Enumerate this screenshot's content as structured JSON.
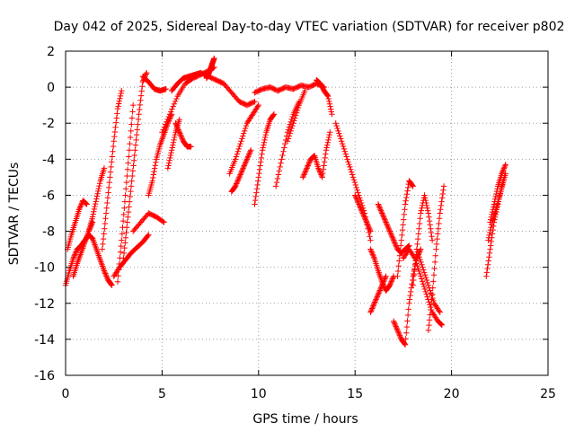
{
  "chart_data": {
    "type": "scatter",
    "title": "Day 042 of 2025, Sidereal Day-to-day VTEC variation (SDTVAR) for receiver p802",
    "xlabel": "GPS time / hours",
    "ylabel": "SDTVAR / TECUs",
    "xlim": [
      0,
      25
    ],
    "ylim": [
      -16,
      2
    ],
    "xticks": [
      0,
      5,
      10,
      15,
      20,
      25
    ],
    "yticks": [
      -16,
      -14,
      -12,
      -10,
      -8,
      -6,
      -4,
      -2,
      0,
      2
    ],
    "grid": true,
    "marker": "plus",
    "color": "#ff0000",
    "series": [
      {
        "name": "s1",
        "x": [
          0.0,
          0.2,
          0.4,
          0.6,
          0.8,
          1.0,
          1.2,
          1.4,
          1.6,
          1.8,
          2.0,
          2.2,
          2.4
        ],
        "y": [
          -11.0,
          -10.2,
          -9.5,
          -9.0,
          -8.8,
          -8.5,
          -8.2,
          -8.4,
          -9.0,
          -9.6,
          -10.2,
          -10.7,
          -11.0
        ]
      },
      {
        "name": "s2",
        "x": [
          0.1,
          0.3,
          0.5,
          0.7,
          0.9,
          1.1
        ],
        "y": [
          -9.0,
          -8.2,
          -7.5,
          -6.8,
          -6.3,
          -6.5
        ]
      },
      {
        "name": "s3",
        "x": [
          0.4,
          0.6,
          0.8,
          1.0,
          1.2,
          1.4
        ],
        "y": [
          -10.5,
          -9.8,
          -9.2,
          -8.6,
          -8.0,
          -7.5
        ]
      },
      {
        "name": "s4",
        "x": [
          1.2,
          1.4,
          1.6,
          1.8,
          2.0
        ],
        "y": [
          -8.0,
          -7.2,
          -6.2,
          -5.2,
          -4.5
        ]
      },
      {
        "name": "s5",
        "x": [
          1.9,
          2.1,
          2.3,
          2.5,
          2.7,
          2.9
        ],
        "y": [
          -9.0,
          -7.0,
          -5.0,
          -3.0,
          -1.2,
          -0.2
        ]
      },
      {
        "name": "s6",
        "x": [
          2.5,
          2.8,
          3.1,
          3.4,
          3.7,
          4.0,
          4.3
        ],
        "y": [
          -10.5,
          -10.0,
          -9.6,
          -9.2,
          -8.9,
          -8.6,
          -8.2
        ]
      },
      {
        "name": "s7",
        "x": [
          3.0,
          3.2,
          3.4,
          3.6,
          3.8,
          4.0,
          4.2
        ],
        "y": [
          -9.5,
          -7.5,
          -5.5,
          -3.5,
          -1.5,
          0.3,
          0.8
        ]
      },
      {
        "name": "s8",
        "x": [
          2.7,
          2.9,
          3.1,
          3.3,
          3.5
        ],
        "y": [
          -10.8,
          -8.5,
          -6.0,
          -3.5,
          -1.0
        ]
      },
      {
        "name": "s9",
        "x": [
          3.5,
          3.9,
          4.3,
          4.7,
          5.1
        ],
        "y": [
          -8.0,
          -7.5,
          -7.0,
          -7.2,
          -7.5
        ]
      },
      {
        "name": "s10",
        "x": [
          4.0,
          4.3,
          4.6,
          4.9,
          5.2
        ],
        "y": [
          0.6,
          0.3,
          -0.1,
          -0.2,
          -0.1
        ]
      },
      {
        "name": "s11",
        "x": [
          4.3,
          4.5,
          4.7,
          4.9,
          5.1,
          5.3,
          5.5
        ],
        "y": [
          -6.0,
          -5.2,
          -4.0,
          -3.2,
          -2.6,
          -2.0,
          -1.5
        ]
      },
      {
        "name": "s12",
        "x": [
          5.0,
          5.4,
          5.8,
          6.2,
          6.6,
          7.0,
          7.4,
          7.7
        ],
        "y": [
          -2.5,
          -1.5,
          -0.5,
          0.2,
          0.5,
          0.7,
          0.9,
          1.1
        ]
      },
      {
        "name": "s13",
        "x": [
          7.7,
          7.6,
          7.5,
          7.4,
          7.3
        ],
        "y": [
          1.6,
          1.3,
          1.0,
          0.7,
          0.5
        ]
      },
      {
        "name": "s14",
        "x": [
          5.5,
          5.8,
          6.1,
          6.4,
          6.7,
          7.0,
          7.4,
          7.8,
          8.2,
          8.6,
          9.0,
          9.4,
          9.8
        ],
        "y": [
          -0.2,
          0.2,
          0.5,
          0.6,
          0.7,
          0.8,
          0.6,
          0.4,
          0.2,
          -0.3,
          -0.8,
          -1.0,
          -0.8
        ]
      },
      {
        "name": "s15",
        "x": [
          5.7,
          5.9,
          6.1,
          6.3,
          6.5
        ],
        "y": [
          -2.0,
          -2.5,
          -3.0,
          -3.3,
          -3.3
        ]
      },
      {
        "name": "s16",
        "x": [
          5.3,
          5.5,
          5.7,
          5.9
        ],
        "y": [
          -4.5,
          -3.5,
          -2.5,
          -1.8
        ]
      },
      {
        "name": "s17",
        "x": [
          8.5,
          8.8,
          9.1,
          9.4,
          9.7,
          10.0
        ],
        "y": [
          -4.8,
          -4.0,
          -3.0,
          -2.0,
          -1.5,
          -1.0
        ]
      },
      {
        "name": "s18",
        "x": [
          8.6,
          8.8,
          9.0,
          9.2,
          9.4,
          9.6
        ],
        "y": [
          -5.8,
          -5.5,
          -5.0,
          -4.5,
          -4.0,
          -3.5
        ]
      },
      {
        "name": "s19",
        "x": [
          9.8,
          10.2,
          10.6,
          11.0,
          11.4,
          11.8,
          12.2,
          12.6,
          13.0,
          13.4
        ],
        "y": [
          -0.3,
          -0.1,
          0.0,
          -0.2,
          0.0,
          -0.1,
          0.1,
          0.0,
          0.2,
          0.0
        ]
      },
      {
        "name": "s20",
        "x": [
          9.8,
          10.0,
          10.2,
          10.4,
          10.6,
          10.8
        ],
        "y": [
          -6.5,
          -5.0,
          -3.5,
          -2.5,
          -1.8,
          -1.5
        ]
      },
      {
        "name": "s21",
        "x": [
          10.9,
          11.2,
          11.5,
          11.8,
          12.1
        ],
        "y": [
          -5.5,
          -4.0,
          -2.5,
          -1.5,
          -0.8
        ]
      },
      {
        "name": "s22",
        "x": [
          12.3,
          12.5,
          12.7,
          12.9,
          13.1,
          13.3,
          13.5,
          13.7
        ],
        "y": [
          -5.0,
          -4.5,
          -4.0,
          -3.8,
          -4.5,
          -5.0,
          -3.5,
          -2.5
        ]
      },
      {
        "name": "s23",
        "x": [
          13.0,
          13.2,
          13.4,
          13.6,
          13.8
        ],
        "y": [
          0.4,
          0.2,
          -0.2,
          -0.5,
          -1.5
        ]
      },
      {
        "name": "s24",
        "x": [
          11.5,
          11.8,
          12.1,
          12.4
        ],
        "y": [
          -3.0,
          -2.0,
          -1.0,
          -0.2
        ]
      },
      {
        "name": "s25",
        "x": [
          14.0,
          14.3,
          14.6,
          14.9,
          15.2,
          15.5,
          15.8
        ],
        "y": [
          -2.0,
          -3.0,
          -4.0,
          -5.0,
          -6.0,
          -7.0,
          -8.5
        ]
      },
      {
        "name": "s26",
        "x": [
          15.0,
          15.2,
          15.4,
          15.6,
          15.8
        ],
        "y": [
          -6.0,
          -6.5,
          -7.0,
          -7.5,
          -8.0
        ]
      },
      {
        "name": "s27",
        "x": [
          15.8,
          16.0,
          16.2,
          16.4,
          16.6,
          16.8,
          17.0
        ],
        "y": [
          -9.0,
          -9.5,
          -10.2,
          -10.8,
          -11.3,
          -11.0,
          -10.5
        ]
      },
      {
        "name": "s28",
        "x": [
          16.2,
          16.4,
          16.6,
          16.8,
          17.0,
          17.2,
          17.4,
          17.6,
          17.8
        ],
        "y": [
          -6.5,
          -7.0,
          -7.5,
          -8.0,
          -8.5,
          -9.0,
          -9.2,
          -9.0,
          -8.8
        ]
      },
      {
        "name": "s29",
        "x": [
          15.8,
          16.0,
          16.2,
          16.4,
          16.6
        ],
        "y": [
          -12.5,
          -12.0,
          -11.5,
          -11.0,
          -10.5
        ]
      },
      {
        "name": "s30",
        "x": [
          17.2,
          17.4,
          17.6,
          17.8,
          18.0
        ],
        "y": [
          -10.5,
          -8.5,
          -6.5,
          -5.2,
          -5.5
        ]
      },
      {
        "name": "s31",
        "x": [
          17.0,
          17.2,
          17.4,
          17.6,
          17.8,
          18.0,
          18.2,
          18.4
        ],
        "y": [
          -13.0,
          -13.5,
          -14.0,
          -14.3,
          -12.0,
          -10.5,
          -9.5,
          -9.0
        ]
      },
      {
        "name": "s32",
        "x": [
          17.5,
          17.8,
          18.1,
          18.4,
          18.7,
          19.0,
          19.3,
          19.5
        ],
        "y": [
          -9.5,
          -9.0,
          -9.5,
          -10.5,
          -11.5,
          -12.5,
          -13.0,
          -13.2
        ]
      },
      {
        "name": "s33",
        "x": [
          18.0,
          18.2,
          18.4,
          18.6,
          18.8,
          19.0
        ],
        "y": [
          -11.0,
          -9.0,
          -7.0,
          -6.0,
          -7.0,
          -8.5
        ]
      },
      {
        "name": "s34",
        "x": [
          18.8,
          19.0,
          19.2,
          19.4,
          19.6
        ],
        "y": [
          -13.5,
          -11.5,
          -9.0,
          -7.0,
          -5.5
        ]
      },
      {
        "name": "s35",
        "x": [
          18.2,
          18.5,
          18.8,
          19.1,
          19.4
        ],
        "y": [
          -9.0,
          -10.0,
          -11.0,
          -12.0,
          -12.5
        ]
      },
      {
        "name": "s36",
        "x": [
          21.8,
          22.0,
          22.2,
          22.4,
          22.6,
          22.8
        ],
        "y": [
          -10.5,
          -9.0,
          -7.5,
          -6.5,
          -5.5,
          -4.8
        ]
      },
      {
        "name": "s37",
        "x": [
          21.9,
          22.1,
          22.3,
          22.5,
          22.7
        ],
        "y": [
          -8.5,
          -7.5,
          -6.8,
          -6.0,
          -5.2
        ]
      },
      {
        "name": "s38",
        "x": [
          22.0,
          22.2,
          22.4,
          22.6,
          22.8
        ],
        "y": [
          -7.5,
          -6.5,
          -5.5,
          -4.8,
          -4.3
        ]
      }
    ]
  }
}
